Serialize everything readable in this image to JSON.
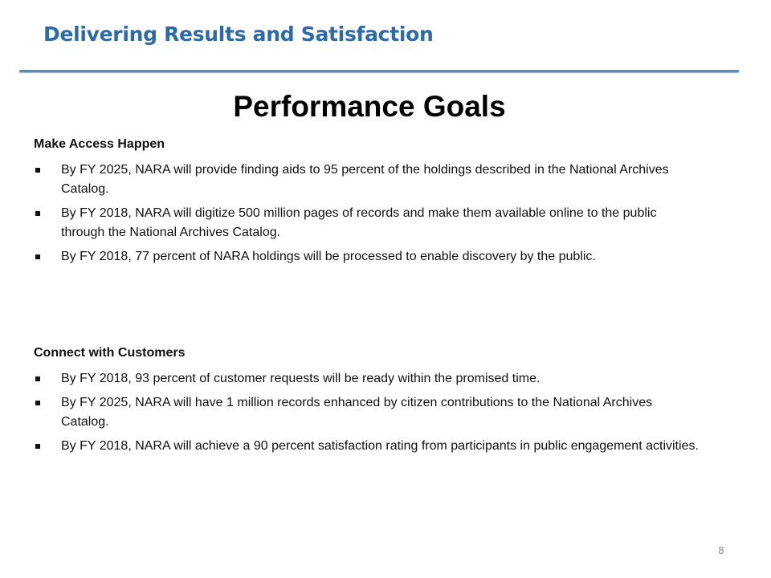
{
  "header": {
    "title": "Delivering Results and Satisfaction"
  },
  "main_title": "Performance Goals",
  "sections": [
    {
      "heading": "Make Access Happen",
      "items": [
        "By FY 2025, NARA will provide finding aids to 95 percent of the holdings described in the National Archives Catalog.",
        "By FY 2018, NARA will digitize 500 million pages of records and make them available online to the public through the National Archives Catalog.",
        "By FY 2018, 77 percent of NARA holdings will be processed to enable discovery by the public."
      ]
    },
    {
      "heading": "Connect with Customers",
      "items": [
        "By FY 2018, 93 percent of customer requests will be ready within the promised time.",
        "By FY 2025, NARA will have 1 million records enhanced by citizen contributions to the National Archives Catalog.",
        "By FY 2018, NARA will achieve a 90 percent satisfaction rating from participants in public engagement activities."
      ]
    }
  ],
  "page_number": "8",
  "colors": {
    "header_title": "#2e6aa8",
    "header_rule": "#5b8bbd",
    "body_text": "#111111",
    "page_number": "#8a8a8a"
  },
  "icons": {
    "bullet": "square-bullet-icon"
  }
}
